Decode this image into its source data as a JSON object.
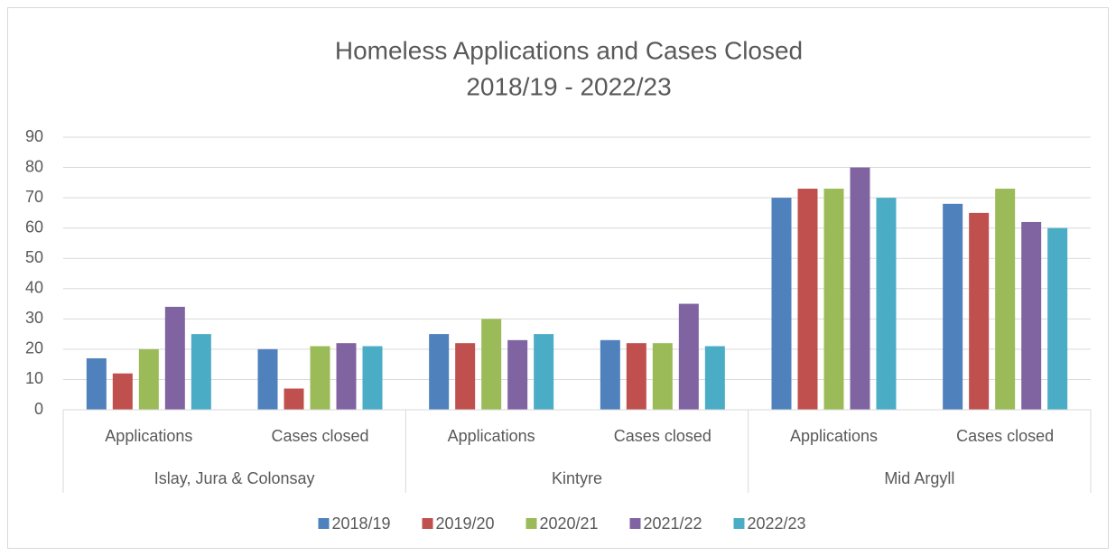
{
  "chart_data": {
    "type": "bar",
    "title": "Homeless Applications and Cases Closed",
    "subtitle": "2018/19 - 2022/23",
    "groups": [
      {
        "name": "Islay, Jura & Colonsay",
        "categories": [
          "Applications",
          "Cases closed"
        ]
      },
      {
        "name": "Kintyre",
        "categories": [
          "Applications",
          "Cases closed"
        ]
      },
      {
        "name": "Mid Argyll",
        "categories": [
          "Applications",
          "Cases closed"
        ]
      }
    ],
    "series": [
      {
        "name": "2018/19",
        "color": "#4f81bd",
        "values": [
          17,
          20,
          25,
          23,
          70,
          68
        ]
      },
      {
        "name": "2019/20",
        "color": "#c0504d",
        "values": [
          12,
          7,
          22,
          22,
          73,
          65
        ]
      },
      {
        "name": "2020/21",
        "color": "#9bbb59",
        "values": [
          20,
          21,
          30,
          22,
          73,
          73
        ]
      },
      {
        "name": "2021/22",
        "color": "#8064a2",
        "values": [
          34,
          22,
          23,
          35,
          80,
          62
        ]
      },
      {
        "name": "2022/23",
        "color": "#4bacc6",
        "values": [
          25,
          21,
          25,
          21,
          70,
          60
        ]
      }
    ],
    "ylim": [
      0,
      90
    ],
    "yticks": [
      0,
      10,
      20,
      30,
      40,
      50,
      60,
      70,
      80,
      90
    ],
    "grid": true,
    "legend": "bottom"
  }
}
